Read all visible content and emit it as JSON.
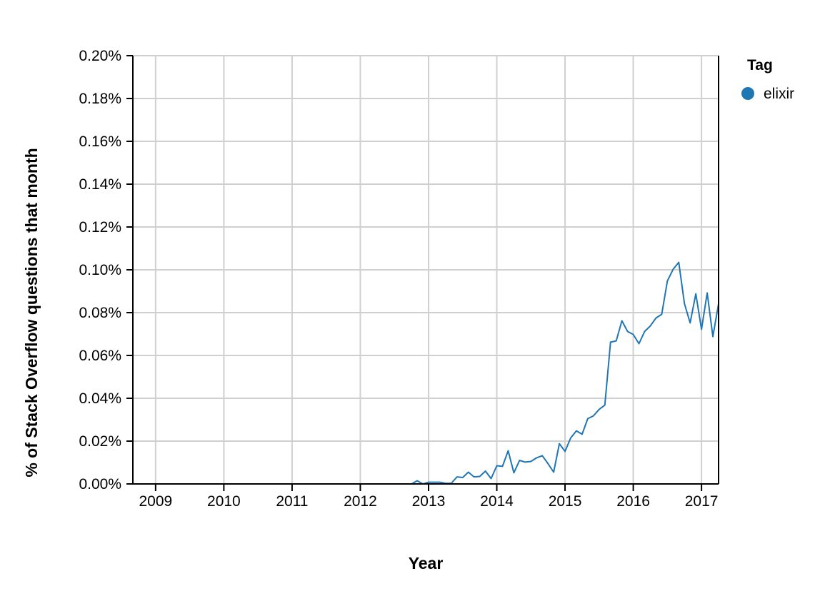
{
  "chart_data": {
    "type": "line",
    "xlabel": "Year",
    "ylabel": "% of Stack Overflow questions that month",
    "x_ticks": [
      "2009",
      "2010",
      "2011",
      "2012",
      "2013",
      "2014",
      "2015",
      "2016",
      "2017"
    ],
    "y_ticks": [
      "0.00%",
      "0.02%",
      "0.04%",
      "0.06%",
      "0.08%",
      "0.10%",
      "0.12%",
      "0.14%",
      "0.16%",
      "0.18%",
      "0.20%"
    ],
    "ylim": [
      0,
      0.2
    ],
    "xlim": [
      "2008-09",
      "2017-04"
    ],
    "grid": true,
    "legend": {
      "title": "Tag",
      "position": "top-right",
      "entries": [
        {
          "label": "elixir",
          "color": "#1f77b4"
        }
      ]
    },
    "series": [
      {
        "name": "elixir",
        "color": "#1f77b4",
        "points": [
          [
            "2008-09",
            0.0
          ],
          [
            "2008-10",
            0.0
          ],
          [
            "2008-11",
            0.0
          ],
          [
            "2008-12",
            0.0
          ],
          [
            "2009-01",
            0.0
          ],
          [
            "2009-02",
            0.0
          ],
          [
            "2009-03",
            0.0
          ],
          [
            "2009-04",
            0.0
          ],
          [
            "2009-05",
            0.0
          ],
          [
            "2009-06",
            0.0
          ],
          [
            "2009-07",
            0.0
          ],
          [
            "2009-08",
            0.0
          ],
          [
            "2009-09",
            0.0
          ],
          [
            "2009-10",
            0.0
          ],
          [
            "2009-11",
            0.0
          ],
          [
            "2009-12",
            0.0
          ],
          [
            "2010-01",
            0.0
          ],
          [
            "2010-02",
            0.0
          ],
          [
            "2010-03",
            0.0
          ],
          [
            "2010-04",
            0.0
          ],
          [
            "2010-05",
            0.0
          ],
          [
            "2010-06",
            0.0
          ],
          [
            "2010-07",
            0.0
          ],
          [
            "2010-08",
            0.0
          ],
          [
            "2010-09",
            0.0
          ],
          [
            "2010-10",
            0.0
          ],
          [
            "2010-11",
            0.0
          ],
          [
            "2010-12",
            0.0
          ],
          [
            "2011-01",
            0.0
          ],
          [
            "2011-02",
            0.0
          ],
          [
            "2011-03",
            0.0
          ],
          [
            "2011-04",
            0.0
          ],
          [
            "2011-05",
            0.0
          ],
          [
            "2011-06",
            0.0
          ],
          [
            "2011-07",
            0.0
          ],
          [
            "2011-08",
            0.0
          ],
          [
            "2011-09",
            0.0
          ],
          [
            "2011-10",
            0.0
          ],
          [
            "2011-11",
            0.0
          ],
          [
            "2011-12",
            0.0
          ],
          [
            "2012-01",
            0.0
          ],
          [
            "2012-02",
            0.0
          ],
          [
            "2012-03",
            0.0
          ],
          [
            "2012-04",
            0.0
          ],
          [
            "2012-05",
            0.0
          ],
          [
            "2012-06",
            0.0
          ],
          [
            "2012-07",
            0.0
          ],
          [
            "2012-08",
            0.0
          ],
          [
            "2012-09",
            0.0
          ],
          [
            "2012-10",
            0.0
          ],
          [
            "2012-11",
            0.0015
          ],
          [
            "2012-12",
            0.0
          ],
          [
            "2013-01",
            0.0008
          ],
          [
            "2013-02",
            0.0008
          ],
          [
            "2013-03",
            0.0008
          ],
          [
            "2013-04",
            0.0003
          ],
          [
            "2013-05",
            0.0003
          ],
          [
            "2013-06",
            0.0033
          ],
          [
            "2013-07",
            0.003
          ],
          [
            "2013-08",
            0.0055
          ],
          [
            "2013-09",
            0.0033
          ],
          [
            "2013-10",
            0.0035
          ],
          [
            "2013-11",
            0.006
          ],
          [
            "2013-12",
            0.0025
          ],
          [
            "2014-01",
            0.0085
          ],
          [
            "2014-02",
            0.0082
          ],
          [
            "2014-03",
            0.0155
          ],
          [
            "2014-04",
            0.0052
          ],
          [
            "2014-05",
            0.011
          ],
          [
            "2014-06",
            0.0102
          ],
          [
            "2014-07",
            0.0105
          ],
          [
            "2014-08",
            0.0122
          ],
          [
            "2014-09",
            0.0132
          ],
          [
            "2014-10",
            0.0095
          ],
          [
            "2014-11",
            0.0055
          ],
          [
            "2014-12",
            0.0188
          ],
          [
            "2015-01",
            0.0152
          ],
          [
            "2015-02",
            0.0215
          ],
          [
            "2015-03",
            0.0248
          ],
          [
            "2015-04",
            0.0232
          ],
          [
            "2015-05",
            0.0305
          ],
          [
            "2015-06",
            0.0318
          ],
          [
            "2015-07",
            0.0348
          ],
          [
            "2015-08",
            0.0368
          ],
          [
            "2015-09",
            0.0662
          ],
          [
            "2015-10",
            0.0668
          ],
          [
            "2015-11",
            0.0762
          ],
          [
            "2015-12",
            0.0712
          ],
          [
            "2016-01",
            0.0698
          ],
          [
            "2016-02",
            0.0655
          ],
          [
            "2016-03",
            0.0712
          ],
          [
            "2016-04",
            0.0738
          ],
          [
            "2016-05",
            0.0775
          ],
          [
            "2016-06",
            0.0792
          ],
          [
            "2016-07",
            0.0948
          ],
          [
            "2016-08",
            0.1002
          ],
          [
            "2016-09",
            0.1035
          ],
          [
            "2016-10",
            0.0842
          ],
          [
            "2016-11",
            0.0752
          ],
          [
            "2016-12",
            0.0888
          ],
          [
            "2017-01",
            0.0722
          ],
          [
            "2017-02",
            0.0892
          ],
          [
            "2017-03",
            0.0688
          ],
          [
            "2017-04",
            0.0842
          ]
        ]
      }
    ]
  }
}
